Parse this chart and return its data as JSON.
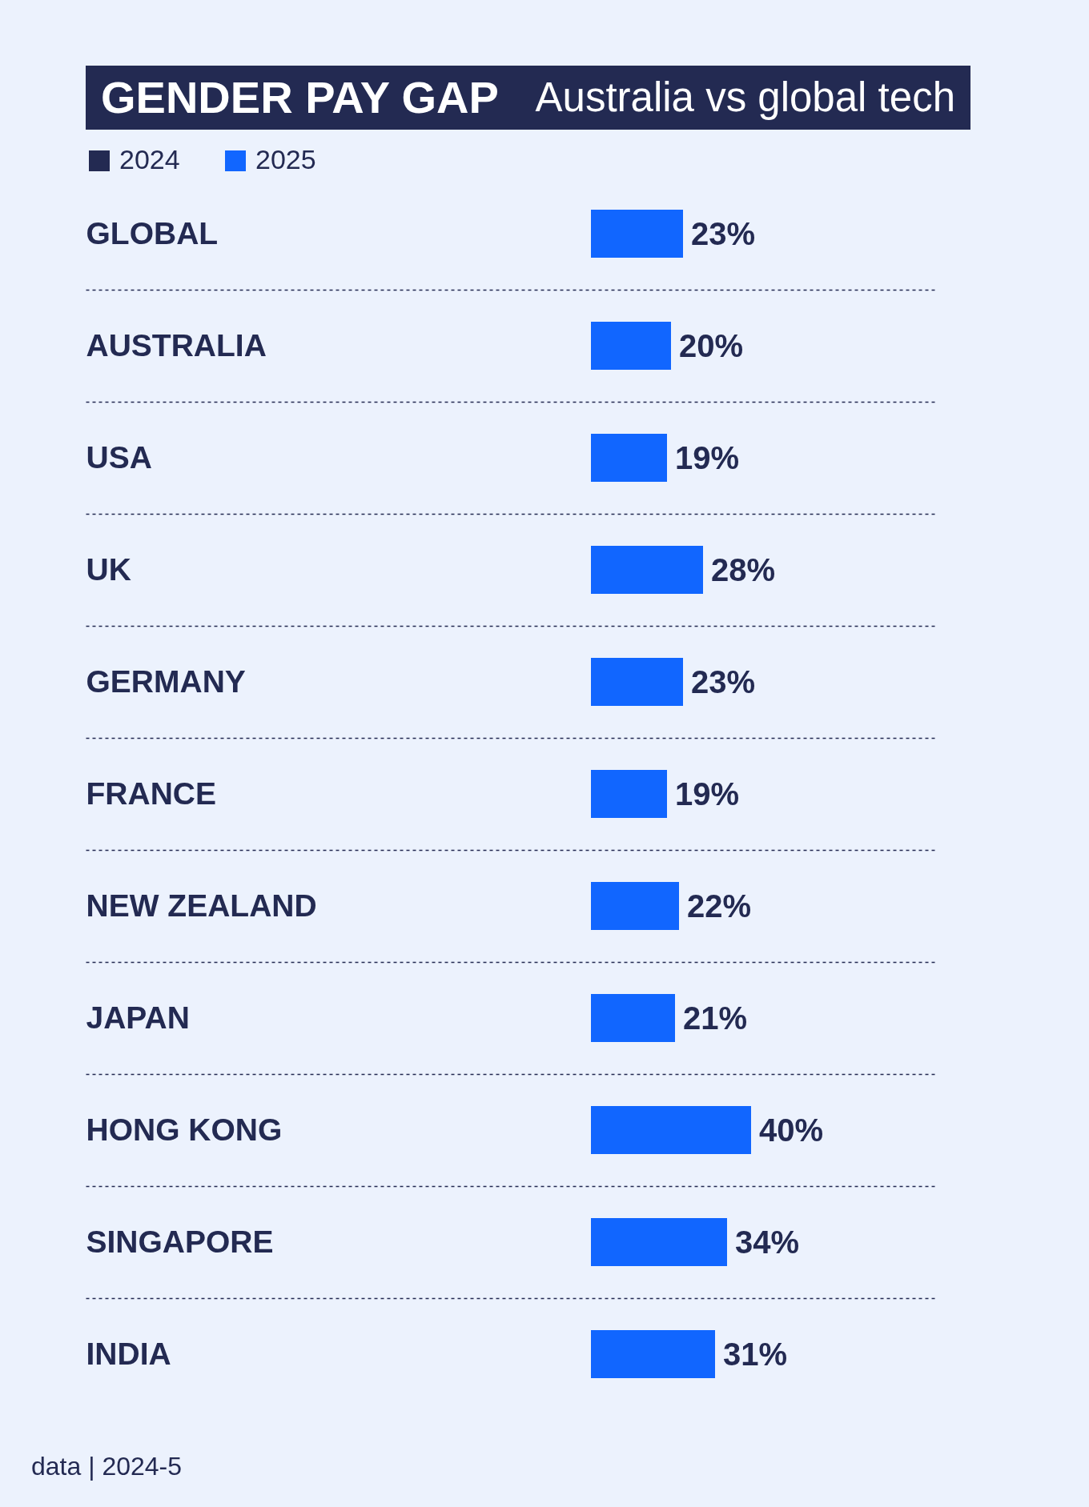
{
  "chart_data": {
    "type": "bar",
    "orientation": "horizontal",
    "title": "GENDER PAY GAP",
    "subtitle": "Australia vs global tech",
    "categories": [
      "GLOBAL",
      "AUSTRALIA",
      "USA",
      "UK",
      "GERMANY",
      "FRANCE",
      "NEW ZEALAND",
      "JAPAN",
      "HONG KONG",
      "SINGAPORE",
      "INDIA"
    ],
    "series": [
      {
        "name": "2024",
        "color": "#232a52",
        "values": [
          null,
          null,
          null,
          null,
          null,
          null,
          null,
          null,
          null,
          null,
          null
        ]
      },
      {
        "name": "2025",
        "color": "#1166ff",
        "values": [
          23,
          20,
          19,
          28,
          23,
          19,
          22,
          21,
          40,
          34,
          31
        ],
        "value_labels": [
          "23%",
          "20%",
          "19%",
          "28%",
          "23%",
          "19%",
          "22%",
          "21%",
          "40%",
          "34%",
          "31%"
        ]
      }
    ],
    "legend": "top left",
    "grid": "y",
    "tick_labels": "y",
    "annotations": [
      "data | 2024-5"
    ]
  }
}
